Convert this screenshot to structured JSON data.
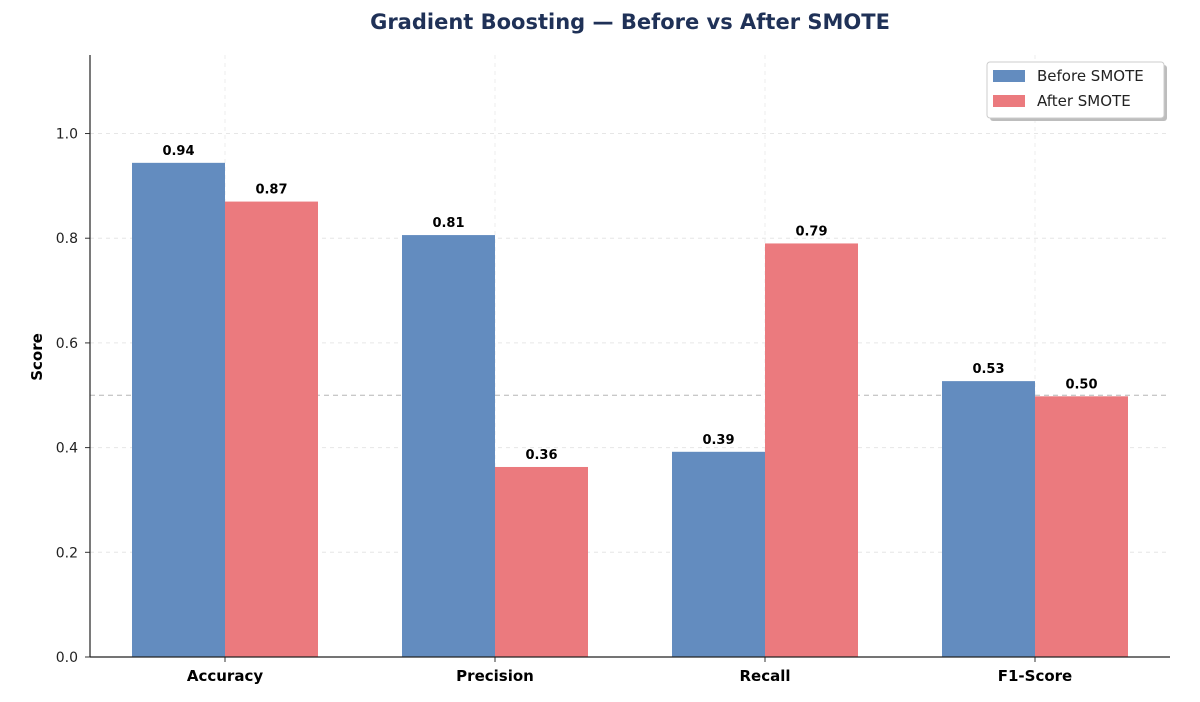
{
  "chart_data": {
    "type": "bar",
    "title": "Gradient Boosting — Before vs After SMOTE",
    "xlabel": "",
    "ylabel": "Score",
    "ylim": [
      0,
      1.15
    ],
    "yticks": [
      "0.0",
      "0.2",
      "0.4",
      "0.6",
      "0.8",
      "1.0"
    ],
    "reference_line": 0.5,
    "categories": [
      "Accuracy",
      "Precision",
      "Recall",
      "F1-Score"
    ],
    "series": [
      {
        "name": "Before SMOTE",
        "values": [
          0.944,
          0.806,
          0.392,
          0.527
        ],
        "labels": [
          "0.94",
          "0.81",
          "0.39",
          "0.53"
        ],
        "color": "#638cbf"
      },
      {
        "name": "After SMOTE",
        "values": [
          0.87,
          0.363,
          0.79,
          0.498
        ],
        "labels": [
          "0.87",
          "0.36",
          "0.79",
          "0.50"
        ],
        "color": "#eb7a7e"
      }
    ],
    "grid": true,
    "legend_position": "top-right",
    "title_color": "#1f3157"
  }
}
